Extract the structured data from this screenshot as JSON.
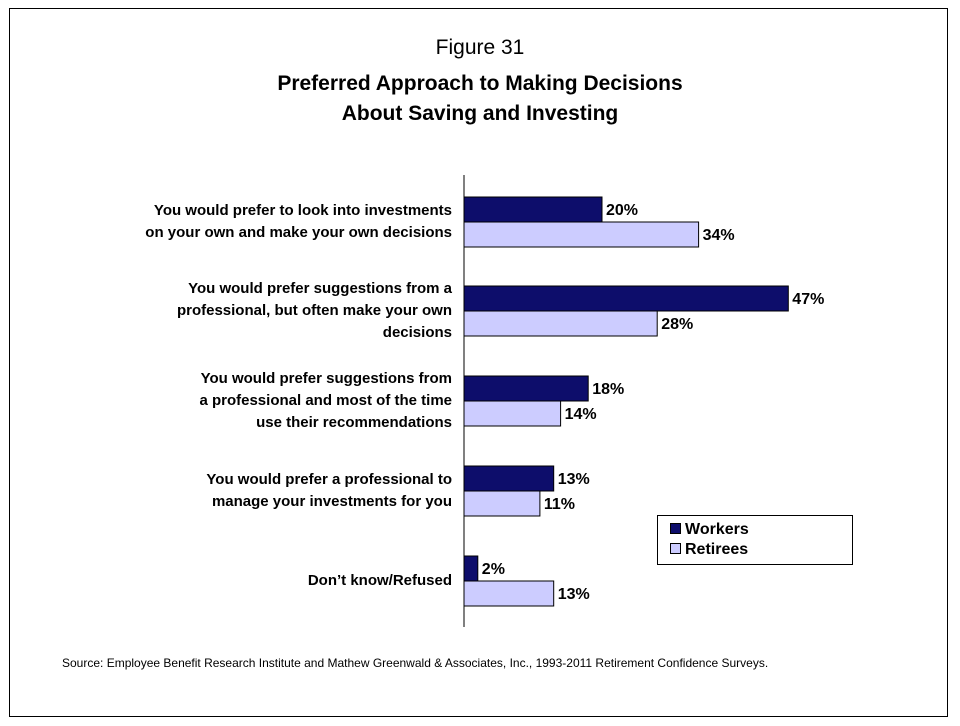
{
  "figure_label": "Figure 31",
  "title_line1": "Preferred Approach to Making Decisions",
  "title_line2": "About Saving and Investing",
  "legend": {
    "workers": "Workers",
    "retirees": "Retirees"
  },
  "source": "Source:  Employee Benefit Research Institute and Mathew Greenwald & Associates, Inc., 1993-2011 Retirement Confidence Surveys.",
  "colors": {
    "workers": "#0d0d6b",
    "retirees": "#ccccff",
    "outline": "#000000"
  },
  "chart_data": {
    "type": "bar",
    "orientation": "horizontal",
    "title": "Preferred Approach to Making Decisions About Saving and Investing",
    "categories": [
      [
        "You would prefer to look into investments",
        "on your own and make your own decisions"
      ],
      [
        "You would prefer suggestions from a",
        "professional, but often make your own",
        "decisions"
      ],
      [
        "You would prefer suggestions from",
        "a professional and most of the time",
        "use their recommendations"
      ],
      [
        "You would prefer a professional to",
        "manage your investments for you"
      ],
      [
        "Don’t know/Refused"
      ]
    ],
    "series": [
      {
        "name": "Workers",
        "values": [
          20,
          47,
          18,
          13,
          2
        ],
        "labels": [
          "20%",
          "47%",
          "18%",
          "13%",
          "2%"
        ]
      },
      {
        "name": "Retirees",
        "values": [
          34,
          28,
          14,
          11,
          13
        ],
        "labels": [
          "34%",
          "28%",
          "14%",
          "11%",
          "13%"
        ]
      }
    ],
    "xlim": [
      0,
      50
    ],
    "legend_position": "bottom-right",
    "grid": false
  }
}
